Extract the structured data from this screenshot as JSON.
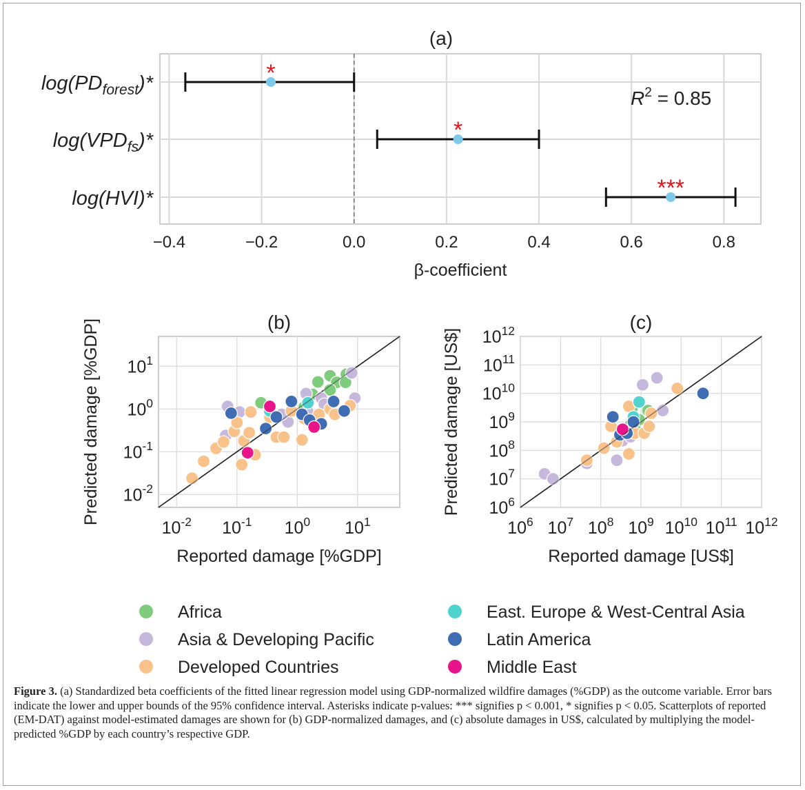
{
  "chart_data": [
    {
      "type": "forest",
      "panel_label": "(a)",
      "xlabel": "β-coefficient",
      "xlim": [
        -0.42,
        0.88
      ],
      "xticks": [
        -0.4,
        -0.2,
        0.0,
        0.2,
        0.4,
        0.6,
        0.8
      ],
      "xtick_labels": [
        "−0.4",
        "−0.2",
        "0.0",
        "0.2",
        "0.4",
        "0.6",
        "0.8"
      ],
      "annotation": "R² = 0.85",
      "rows": [
        {
          "label_base": "log(PD",
          "label_sub": "forest",
          "label_end": ")*",
          "estimate": -0.18,
          "ci_low": -0.365,
          "ci_high": 0.0,
          "significance": "*"
        },
        {
          "label_base": "log(VPD",
          "label_sub": "fs",
          "label_end": ")*",
          "estimate": 0.225,
          "ci_low": 0.05,
          "ci_high": 0.4,
          "significance": "*"
        },
        {
          "label_base": "log(HVI",
          "label_sub": "",
          "label_end": ")*",
          "estimate": 0.685,
          "ci_low": 0.545,
          "ci_high": 0.825,
          "significance": "***"
        }
      ]
    },
    {
      "type": "scatter",
      "panel_label": "(b)",
      "xlabel": "Reported damage [%GDP]",
      "ylabel": "Predicted damage [%GDP]",
      "xscale": "log",
      "yscale": "log",
      "xlim": [
        0.005,
        50
      ],
      "ylim": [
        0.005,
        50
      ],
      "xticks": [
        "10-2",
        "10-1",
        "100",
        "101"
      ],
      "yticks": [
        "10-2",
        "10-1",
        "100",
        "101"
      ],
      "identity_line": true,
      "series": [
        {
          "name": "Africa",
          "color": "#80cc7e",
          "points": [
            [
              0.25,
              1.4
            ],
            [
              1.8,
              2.2
            ],
            [
              2.2,
              4.3
            ],
            [
              3.5,
              6
            ],
            [
              4.5,
              4.2
            ],
            [
              6.5,
              6.5
            ],
            [
              6.3,
              4.2
            ],
            [
              3.5,
              2.8
            ],
            [
              1.3,
              1.1
            ],
            [
              1.5,
              0.8
            ]
          ]
        },
        {
          "name": "Asia & Developing Pacific",
          "color": "#c6b7dc",
          "points": [
            [
              0.07,
              1.15
            ],
            [
              0.065,
              0.24
            ],
            [
              0.11,
              0.85
            ],
            [
              0.45,
              0.7
            ],
            [
              0.7,
              0.5
            ],
            [
              1.4,
              2.3
            ],
            [
              2.5,
              1.8
            ],
            [
              8,
              7
            ],
            [
              9,
              1.8
            ],
            [
              0.55,
              0.75
            ],
            [
              1.5,
              0.85
            ],
            [
              2.8,
              1.3
            ]
          ]
        },
        {
          "name": "Developed Countries",
          "color": "#f9c28b",
          "points": [
            [
              0.018,
              0.024
            ],
            [
              0.028,
              0.06
            ],
            [
              0.045,
              0.12
            ],
            [
              0.06,
              0.17
            ],
            [
              0.09,
              0.3
            ],
            [
              0.1,
              0.48
            ],
            [
              0.13,
              0.18
            ],
            [
              0.16,
              0.28
            ],
            [
              0.2,
              0.085
            ],
            [
              0.17,
              0.85
            ],
            [
              0.35,
              0.65
            ],
            [
              0.45,
              0.22
            ],
            [
              0.6,
              0.22
            ],
            [
              0.8,
              0.9
            ],
            [
              1.2,
              0.19
            ],
            [
              1.3,
              0.6
            ],
            [
              2.3,
              0.75
            ],
            [
              3.5,
              1.0
            ],
            [
              4.2,
              0.75
            ],
            [
              7.5,
              1.2
            ],
            [
              0.12,
              0.05
            ]
          ]
        },
        {
          "name": "East. Europe & West-Central Asia",
          "color": "#4fd3cf",
          "points": [
            [
              1.5,
              1.4
            ],
            [
              0.35,
              0.9
            ]
          ]
        },
        {
          "name": "Latin America",
          "color": "#3f6db3",
          "points": [
            [
              0.08,
              0.8
            ],
            [
              0.3,
              0.35
            ],
            [
              0.45,
              0.65
            ],
            [
              0.8,
              1.5
            ],
            [
              1.2,
              0.75
            ],
            [
              1.6,
              0.55
            ],
            [
              2.5,
              0.45
            ],
            [
              4,
              1.5
            ],
            [
              6,
              0.9
            ]
          ]
        },
        {
          "name": "Middle East",
          "color": "#e8158a",
          "points": [
            [
              0.15,
              0.095
            ],
            [
              0.35,
              1.15
            ],
            [
              1.9,
              0.38
            ]
          ]
        }
      ]
    },
    {
      "type": "scatter",
      "panel_label": "(c)",
      "xlabel": "Reported damage [US$]",
      "ylabel": "Predicted damage [US$]",
      "xscale": "log",
      "yscale": "log",
      "xlim": [
        1000000,
        1000000000000
      ],
      "ylim": [
        1000000,
        1000000000000
      ],
      "xticks": [
        "106",
        "107",
        "108",
        "109",
        "1010",
        "1011",
        "1012"
      ],
      "yticks": [
        "106",
        "107",
        "108",
        "109",
        "1010",
        "1011",
        "1012"
      ],
      "identity_line": true,
      "series": [
        {
          "name": "Africa",
          "color": "#80cc7e",
          "points": [
            [
              600000000,
              3000000000
            ],
            [
              550000000,
              800000000
            ],
            [
              700000000,
              600000000
            ],
            [
              1500000000,
              2500000000
            ],
            [
              900000000,
              1200000000
            ]
          ]
        },
        {
          "name": "Asia & Developing Pacific",
          "color": "#c6b7dc",
          "points": [
            [
              4000000,
              15000000
            ],
            [
              6500000,
              10000000
            ],
            [
              45000000,
              35000000
            ],
            [
              250000000,
              45000000
            ],
            [
              350000000,
              220000000
            ],
            [
              550000000,
              300000000
            ],
            [
              1100000000,
              20000000000
            ],
            [
              2500000000,
              35000000000
            ],
            [
              3500000000,
              2500000000
            ]
          ]
        },
        {
          "name": "Developed Countries",
          "color": "#f9c28b",
          "points": [
            [
              45000000,
              45000000
            ],
            [
              120000000,
              120000000
            ],
            [
              180000000,
              700000000
            ],
            [
              250000000,
              200000000
            ],
            [
              400000000,
              500000000
            ],
            [
              500000000,
              3500000000
            ],
            [
              500000000,
              75000000
            ],
            [
              700000000,
              400000000
            ],
            [
              1200000000,
              400000000
            ],
            [
              1600000000,
              700000000
            ],
            [
              1800000000,
              2000000000
            ],
            [
              8000000000,
              15000000000
            ]
          ]
        },
        {
          "name": "East. Europe & West-Central Asia",
          "color": "#4fd3cf",
          "points": [
            [
              900000000,
              5000000000
            ],
            [
              650000000,
              1500000000
            ]
          ]
        },
        {
          "name": "Latin America",
          "color": "#3f6db3",
          "points": [
            [
              200000000,
              1500000000
            ],
            [
              300000000,
              350000000
            ],
            [
              450000000,
              400000000
            ],
            [
              650000000,
              1000000000
            ],
            [
              35000000000,
              10000000000
            ]
          ]
        },
        {
          "name": "Middle East",
          "color": "#e8158a",
          "points": [
            [
              350000000,
              550000000
            ]
          ]
        }
      ]
    }
  ],
  "caption": {
    "label": "Figure 3.",
    "text": " (a) Standardized beta coefficients of the fitted linear regression model using GDP-normalized wildfire damages (%GDP) as the outcome variable. Error bars indicate the lower and upper bounds of the 95% confidence interval. Asterisks indicate p-values: *** signifies p < 0.001, * signifies p < 0.05. Scatterplots of reported (EM-DAT) against model-estimated damages are shown for (b) GDP-normalized damages, and (c) absolute damages in US$, calculated by multiplying the model-predicted %GDP by each country’s respective GDP."
  }
}
